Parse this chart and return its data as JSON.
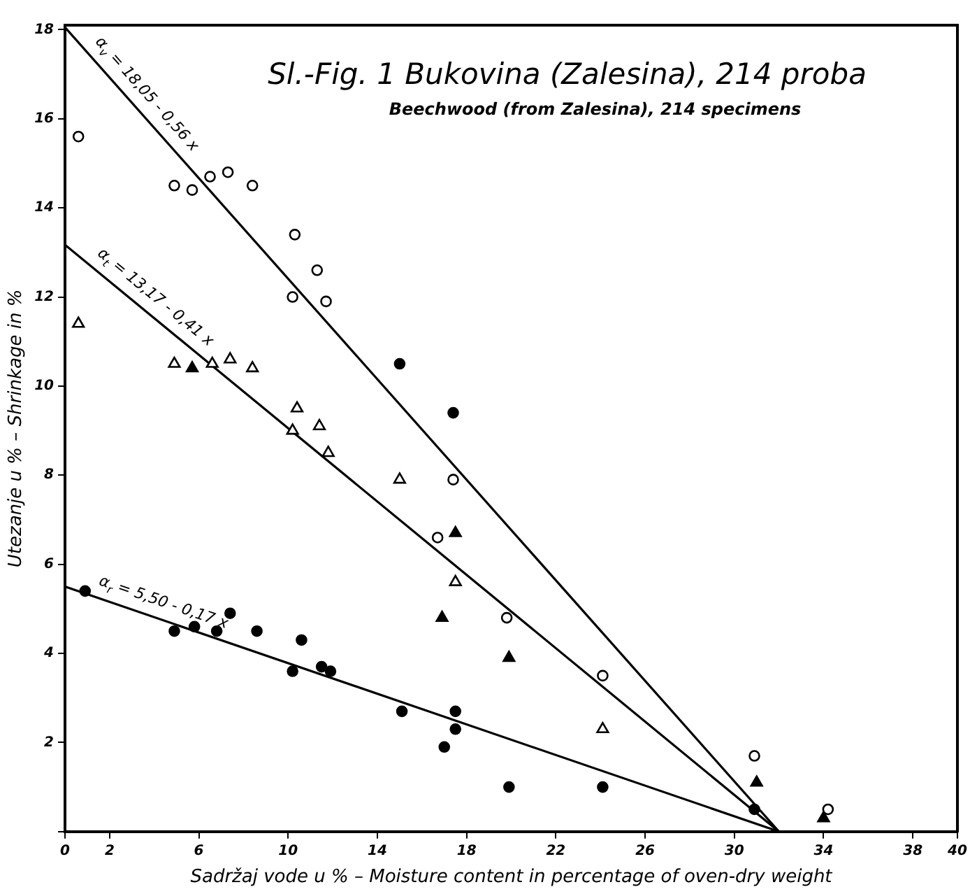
{
  "chart_data": {
    "type": "scatter",
    "title": "Sl.-Fig. 1 Bukovina (Zalesina), 214 proba",
    "subtitle": "Beechwood (from Zalesina), 214 specimens",
    "xlabel": "Sadržaj vode u % – Moisture content in percentage of oven-dry weight",
    "ylabel": "Utezanje u % – Shrinkage in %",
    "xlim": [
      0,
      40
    ],
    "ylim": [
      0,
      18.1
    ],
    "xticks": [
      0,
      2,
      6,
      10,
      14,
      18,
      22,
      26,
      30,
      34,
      38,
      40
    ],
    "yticks": [
      {
        "value": 0,
        "label": null
      },
      2,
      4,
      6,
      8,
      10,
      12,
      14,
      16,
      18
    ],
    "grid": false,
    "legend": false,
    "series": [
      {
        "type": "scatter",
        "marker": "circle",
        "color": "#ffffff",
        "x": [
          0.6,
          4.9,
          5.7,
          6.5,
          7.3,
          8.4,
          10.3,
          11.3,
          10.2,
          11.7,
          17.4,
          16.7,
          19.8,
          24.1,
          30.9,
          34.2
        ],
        "values": [
          15.6,
          14.5,
          14.4,
          14.7,
          14.8,
          14.5,
          13.4,
          12.6,
          12.0,
          11.9,
          7.9,
          6.6,
          4.8,
          3.5,
          1.7,
          0.5
        ]
      },
      {
        "type": "scatter",
        "marker": "triangle",
        "color": "#ffffff",
        "x": [
          0.6,
          4.9,
          6.6,
          7.4,
          8.4,
          10.4,
          11.4,
          10.2,
          11.8,
          15.0,
          17.5,
          24.1
        ],
        "values": [
          11.4,
          10.5,
          10.5,
          10.6,
          10.4,
          9.5,
          9.1,
          9.0,
          8.5,
          7.9,
          5.6,
          2.3
        ]
      },
      {
        "type": "scatter",
        "marker": "triangle",
        "color": "#000000",
        "x": [
          5.7,
          17.5,
          16.9,
          19.9,
          31.0,
          34.0
        ],
        "values": [
          10.4,
          6.7,
          4.8,
          3.9,
          1.1,
          0.3
        ]
      },
      {
        "type": "scatter",
        "marker": "circle",
        "color": "#000000",
        "x": [
          15.0,
          17.4,
          0.9,
          4.9,
          5.8,
          6.8,
          7.4,
          8.6,
          10.6,
          10.2,
          11.5,
          11.9,
          15.1,
          17.5,
          17.5,
          17.0,
          19.9,
          24.1,
          30.9
        ],
        "values": [
          10.5,
          9.4,
          5.4,
          4.5,
          4.6,
          4.5,
          4.9,
          4.5,
          4.3,
          3.6,
          3.7,
          3.6,
          2.7,
          2.7,
          2.3,
          1.9,
          1.0,
          1.0,
          0.5
        ]
      },
      {
        "type": "line",
        "marker": "none",
        "color": "#000000",
        "x": [
          0,
          32
        ],
        "values": [
          18.05,
          0
        ]
      },
      {
        "type": "line",
        "marker": "none",
        "color": "#000000",
        "x": [
          0,
          32
        ],
        "values": [
          13.17,
          0
        ]
      },
      {
        "type": "line",
        "marker": "none",
        "color": "#000000",
        "x": [
          0,
          32
        ],
        "values": [
          5.5,
          0
        ]
      }
    ],
    "annotations": [
      "α$_{v}$ = 18,05 - 0,56 x",
      "α$_{t}$ = 13,17 - 0,41 x",
      "α$_{r}$ = 5,50 - 0,17 x"
    ]
  }
}
